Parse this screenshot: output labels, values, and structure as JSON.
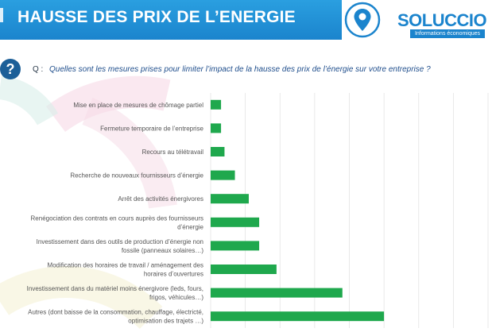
{
  "header": {
    "title": "HAUSSE DES PRIX DE L’ENERGIE"
  },
  "logo": {
    "name": "SOLUCCIO",
    "tagline": "Informations économiques",
    "brand_color": "#1b84cd"
  },
  "question": {
    "icon": "question-mark-icon",
    "prefix": "Q :",
    "text": "Quelles sont les mesures prises pour limiter l’impact de la hausse des prix de l’énergie sur votre entreprise ?"
  },
  "chart_data": {
    "type": "bar",
    "orientation": "horizontal",
    "categories": [
      [
        "Mise en place de mesures de chômage partiel"
      ],
      [
        "Fermeture temporaire de l’entreprise"
      ],
      [
        "Recours au télétravail"
      ],
      [
        "Recherche de nouveaux fournisseurs d’énergie"
      ],
      [
        "Arrêt des activités énergivores"
      ],
      [
        "Renégociation des contrats en cours auprès des fournisseurs",
        "d’énergie"
      ],
      [
        "Investissement dans des outils de production d’énergie non",
        "fossile (panneaux solaires…)"
      ],
      [
        "Modification des horaires de travail / aménagement des",
        "horaires d’ouvertures"
      ],
      [
        "Investissement dans du matériel moins énergivore (leds, fours,",
        "frigos, véhicules…)"
      ],
      [
        "Autres (dont baisse de la consommation, chauffage, électricté,",
        "optimisation des trajets …)"
      ]
    ],
    "values": [
      3,
      3,
      4,
      7,
      11,
      14,
      14,
      19,
      38,
      50
    ],
    "xlim": [
      0,
      80
    ],
    "grid": true,
    "bar_color": "#1fa84d",
    "title": "",
    "xlabel": "",
    "ylabel": ""
  }
}
